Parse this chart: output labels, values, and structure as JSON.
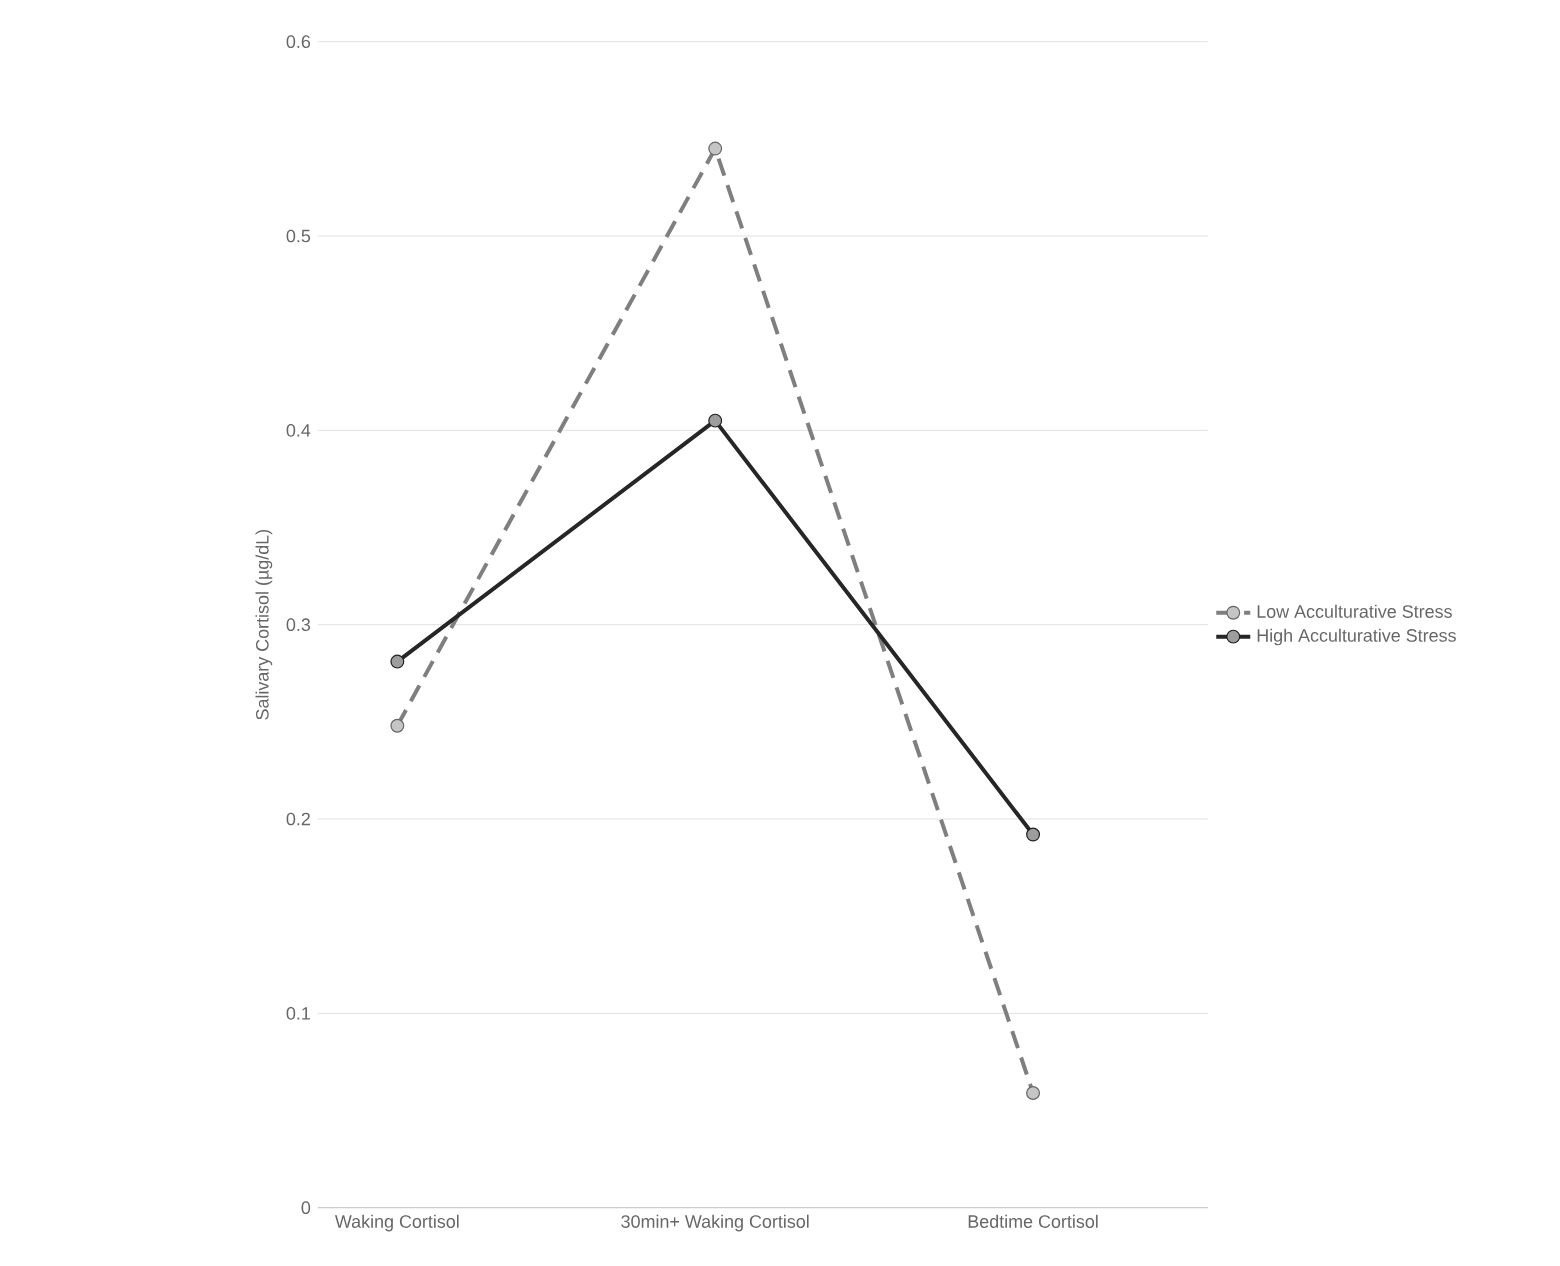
{
  "chart_data": {
    "type": "line",
    "ylabel": "Salivary Cortisol (µg/dL)",
    "categories": [
      "Waking Cortisol",
      "30min+ Waking Cortisol",
      "Bedtime Cortisol"
    ],
    "series": [
      {
        "name": "Low Acculturative Stress",
        "color": "#7f7f7f",
        "line_style": "dashed",
        "values": [
          0.248,
          0.545,
          0.059
        ]
      },
      {
        "name": "High Acculturative Stress",
        "color": "#262626",
        "line_style": "solid",
        "values": [
          0.281,
          0.405,
          0.192
        ]
      }
    ],
    "ylim": [
      0,
      0.6
    ],
    "yticks": [
      0,
      0.1,
      0.2,
      0.3,
      0.4,
      0.5,
      0.6
    ],
    "grid": "y",
    "legend": "right",
    "marker": "circle"
  }
}
